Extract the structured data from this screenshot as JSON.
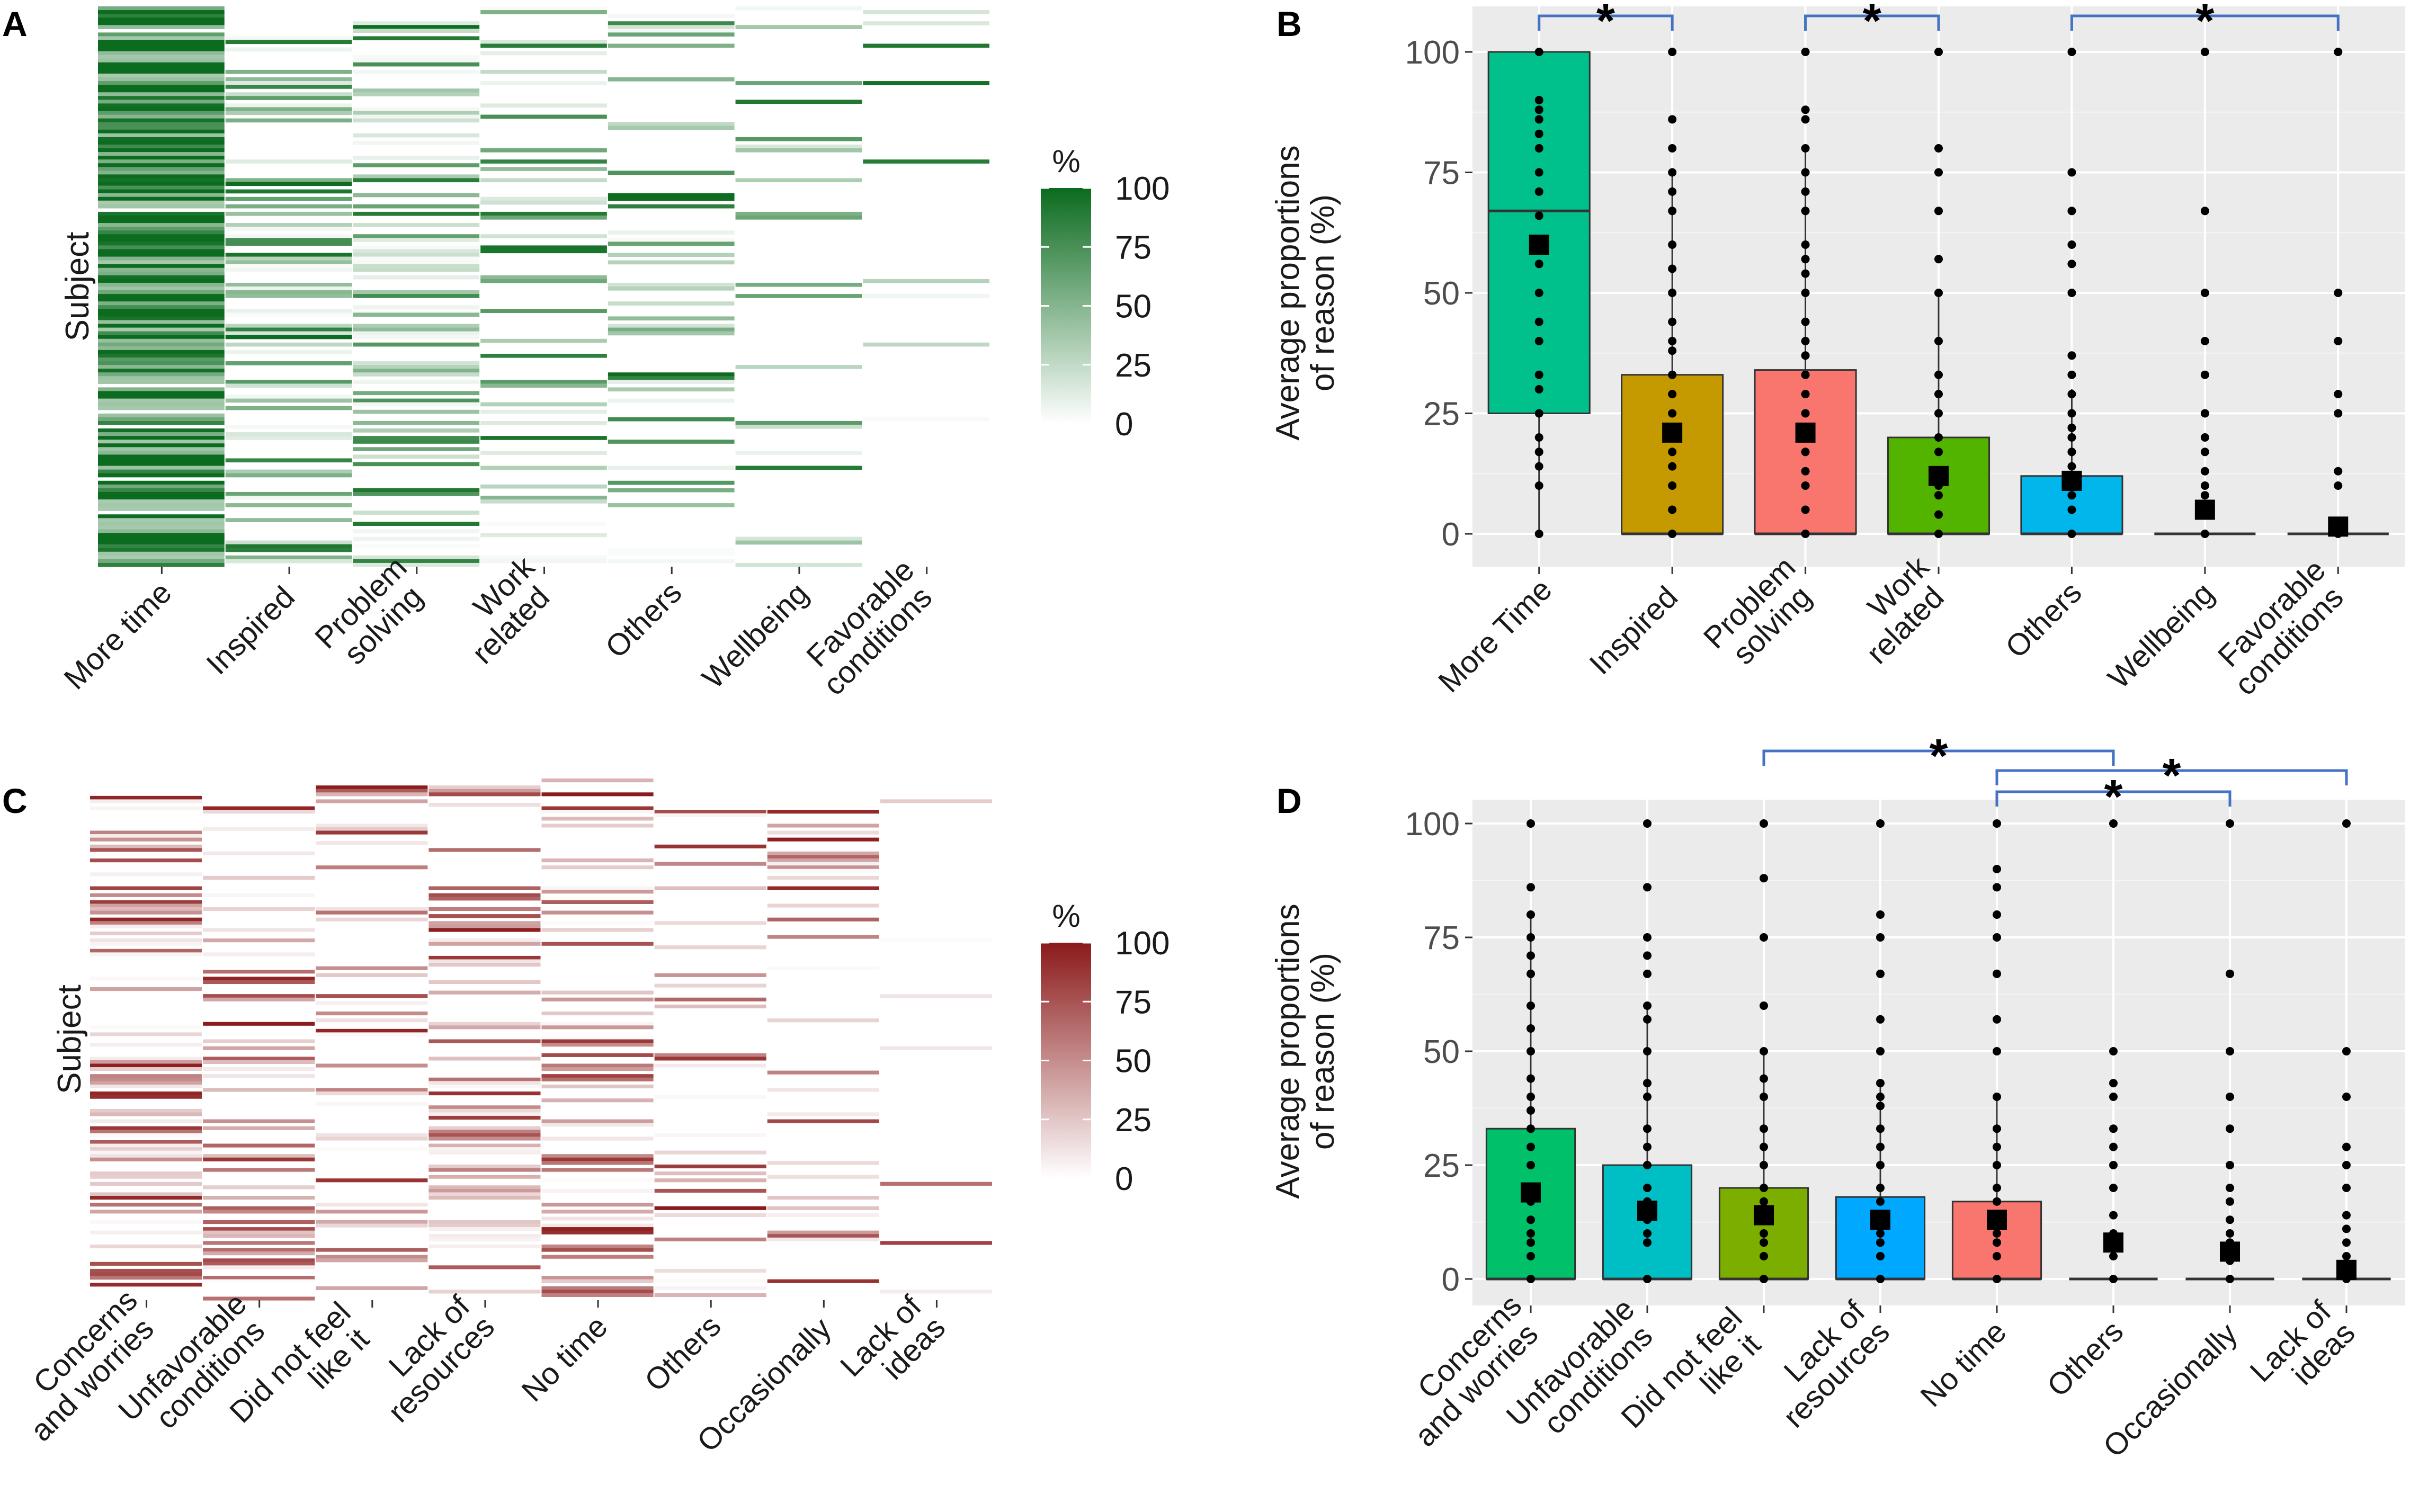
{
  "figure": {
    "panel_labels": [
      "A",
      "B",
      "C",
      "D"
    ]
  },
  "chart_data": [
    {
      "panel": "A",
      "type": "heatmap",
      "ylabel": "Subject",
      "categories": [
        "More time",
        "Inspired",
        "Problem\nsolving",
        "Work\nrelated",
        "Others",
        "Wellbeing",
        "Favorable\nconditions"
      ],
      "legend_title": "%",
      "legend_ticks": [
        0,
        25,
        50,
        75,
        100
      ],
      "color_low": "#ffffff",
      "color_high": "#0b6b1e",
      "value_range": [
        0,
        100
      ],
      "subject_count": 150,
      "column_mean_percent": [
        60,
        21,
        21,
        12,
        11,
        5,
        1
      ]
    },
    {
      "panel": "B",
      "type": "bar",
      "ylabel": "Average proportions\nof reason (%)",
      "categories": [
        "More Time",
        "Inspired",
        "Problem\nsolving",
        "Work\nrelated",
        "Others",
        "Wellbeing",
        "Favorable\nconditions"
      ],
      "colors": [
        "#00c08b",
        "#c49a00",
        "#f8766d",
        "#53b400",
        "#00b6eb",
        "#000000",
        "#000000"
      ],
      "ylim": [
        0,
        100
      ],
      "yticks": [
        0,
        25,
        50,
        75,
        100
      ],
      "q1": [
        25,
        0,
        0,
        0,
        0,
        0,
        0
      ],
      "median": [
        67,
        0,
        0,
        0,
        0,
        0,
        0
      ],
      "q3": [
        100,
        33,
        34,
        20,
        12,
        0,
        0
      ],
      "mean": [
        60,
        21,
        21,
        12,
        11,
        5,
        1.5
      ],
      "whisker_high": [
        100,
        75,
        80,
        50,
        30,
        0,
        0
      ],
      "points": [
        [
          0,
          10,
          14,
          17,
          20,
          25,
          30,
          33,
          40,
          44,
          50,
          56,
          60,
          66,
          71,
          75,
          80,
          83,
          86,
          88,
          90,
          100
        ],
        [
          0,
          5,
          10,
          14,
          17,
          20,
          25,
          29,
          33,
          38,
          40,
          44,
          50,
          55,
          60,
          67,
          71,
          75,
          80,
          86,
          100
        ],
        [
          0,
          5,
          10,
          13,
          17,
          20,
          25,
          29,
          33,
          37,
          40,
          44,
          50,
          54,
          57,
          60,
          67,
          71,
          75,
          80,
          86,
          88,
          100
        ],
        [
          0,
          4,
          8,
          10,
          13,
          17,
          20,
          25,
          29,
          33,
          40,
          50,
          57,
          67,
          75,
          80,
          100
        ],
        [
          0,
          5,
          8,
          10,
          12,
          14,
          17,
          20,
          22,
          25,
          29,
          33,
          37,
          50,
          56,
          60,
          67,
          75,
          100
        ],
        [
          0,
          4,
          8,
          10,
          13,
          17,
          20,
          25,
          33,
          40,
          50,
          67,
          100
        ],
        [
          0,
          10,
          13,
          25,
          29,
          40,
          50,
          100
        ]
      ],
      "significance": [
        {
          "from": 0,
          "to": 1,
          "label": "*"
        },
        {
          "from": 2,
          "to": 3,
          "label": "*"
        },
        {
          "from": 4,
          "to": 6,
          "label": "*"
        }
      ]
    },
    {
      "panel": "C",
      "type": "heatmap",
      "ylabel": "Subject",
      "categories": [
        "Concerns\nand worries",
        "Unfavorable\nconditions",
        "Did not feel\nlike it",
        "Lack of\nresources",
        "No time",
        "Others",
        "Occasionally",
        "Lack of\nideas"
      ],
      "legend_title": "%",
      "legend_ticks": [
        0,
        25,
        50,
        75,
        100
      ],
      "color_low": "#ffffff",
      "color_high": "#8b1a1a",
      "value_range": [
        0,
        100
      ],
      "subject_count": 150,
      "column_mean_percent": [
        19,
        15,
        14,
        13,
        13,
        8,
        6,
        2
      ]
    },
    {
      "panel": "D",
      "type": "bar",
      "ylabel": "Average proportions\nof reason (%)",
      "categories": [
        "Concerns\nand worries",
        "Unfavorable\nconditions",
        "Did not feel\nlike it",
        "Lack of\nresources",
        "No time",
        "Others",
        "Occasionally",
        "Lack of\nideas"
      ],
      "colors": [
        "#00c06a",
        "#00bfc4",
        "#7cae00",
        "#00a9ff",
        "#f8766d",
        "#000000",
        "#000000",
        "#000000"
      ],
      "ylim": [
        0,
        100
      ],
      "yticks": [
        0,
        25,
        50,
        75,
        100
      ],
      "q1": [
        0,
        0,
        0,
        0,
        0,
        0,
        0,
        0
      ],
      "median": [
        0,
        0,
        0,
        0,
        0,
        0,
        0,
        0
      ],
      "q3": [
        33,
        25,
        20,
        18,
        17,
        0,
        0,
        0
      ],
      "mean": [
        19,
        15,
        14,
        13,
        13,
        8,
        6,
        2
      ],
      "whisker_high": [
        80,
        60,
        50,
        43,
        40,
        0,
        0,
        0
      ],
      "points": [
        [
          0,
          5,
          8,
          10,
          13,
          17,
          20,
          25,
          29,
          33,
          37,
          40,
          44,
          50,
          55,
          60,
          67,
          71,
          75,
          80,
          86,
          100
        ],
        [
          0,
          8,
          10,
          13,
          17,
          20,
          25,
          29,
          33,
          40,
          43,
          50,
          57,
          60,
          67,
          71,
          75,
          86,
          100
        ],
        [
          0,
          5,
          8,
          10,
          13,
          17,
          20,
          25,
          29,
          33,
          40,
          44,
          50,
          60,
          75,
          88,
          100
        ],
        [
          0,
          5,
          8,
          10,
          13,
          17,
          20,
          25,
          29,
          33,
          38,
          40,
          43,
          50,
          57,
          67,
          75,
          80,
          100
        ],
        [
          0,
          5,
          8,
          10,
          13,
          17,
          20,
          25,
          29,
          33,
          40,
          50,
          57,
          67,
          75,
          80,
          86,
          90,
          100
        ],
        [
          0,
          5,
          8,
          10,
          14,
          20,
          25,
          29,
          33,
          40,
          43,
          50,
          100
        ],
        [
          0,
          4,
          8,
          10,
          13,
          17,
          20,
          25,
          33,
          40,
          50,
          67,
          100
        ],
        [
          0,
          5,
          8,
          11,
          14,
          20,
          25,
          29,
          40,
          50,
          100
        ]
      ],
      "significance": [
        {
          "from": 2,
          "to": 5,
          "label": "*"
        },
        {
          "from": 4,
          "to": 7,
          "label": "*"
        },
        {
          "from": 4,
          "to": 6,
          "label": "*"
        }
      ]
    }
  ]
}
